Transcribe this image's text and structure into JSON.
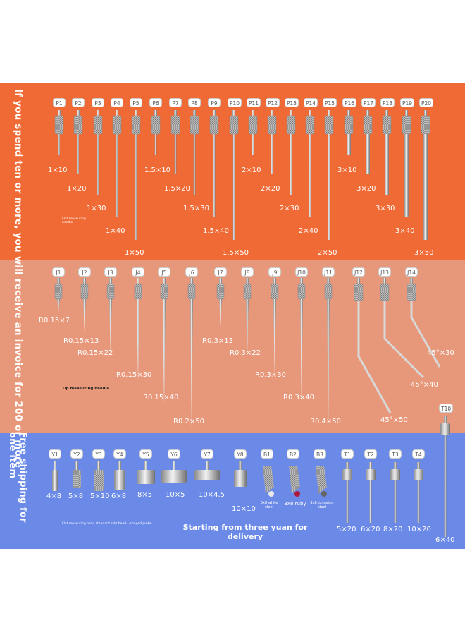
{
  "side_text_1": "If you spend ten or more, you will receive an invoice for 200 or more",
  "side_text_2": "Free shipping for one item",
  "note_flat": "Flat measuring needle",
  "note_tip": "Tip measuring needle",
  "note_head": "Flat measuring head standard side head L-shaped probe",
  "promo_text": "Starting from three yuan for delivery",
  "p_tags": [
    "P1",
    "P2",
    "P3",
    "P4",
    "P5",
    "P6",
    "P7",
    "P8",
    "P9",
    "P10",
    "P11",
    "P12",
    "P13",
    "P14",
    "P15",
    "P16",
    "P17",
    "P18",
    "P19",
    "P20"
  ],
  "p_labels": [
    "1×10",
    "1×20",
    "1×30",
    "1×40",
    "1×50",
    "1.5×10",
    "1.5×20",
    "1.5×30",
    "1.5×40",
    "1.5×50",
    "2×10",
    "2×20",
    "2×30",
    "2×40",
    "2×50",
    "3×10",
    "3×20",
    "3×30",
    "3×40",
    "3×50"
  ],
  "j_tags": [
    "J1",
    "J2",
    "J3",
    "J4",
    "J5",
    "J6",
    "J7",
    "J8",
    "J9",
    "J10",
    "J11",
    "J12",
    "J13",
    "J14"
  ],
  "j_labels": [
    "R0.15×7",
    "R0.15×13",
    "R0.15×22",
    "R0.15×30",
    "R0.15×40",
    "R0.2×50",
    "R0.3×13",
    "R0.3×22",
    "R0.3×30",
    "R0.3×40",
    "R0.4×50",
    "45°×50",
    "45°×40",
    "45°×30"
  ],
  "y_tags": [
    "Y1",
    "Y2",
    "Y3",
    "Y4",
    "Y5",
    "Y6",
    "Y7",
    "Y8"
  ],
  "y_labels": [
    "4×8",
    "5×8",
    "5×10",
    "6×8",
    "8×5",
    "10×5",
    "10×4.5",
    "10×10"
  ],
  "b_tags": [
    "B1",
    "B2",
    "B3"
  ],
  "b_labels": [
    "3x8 white steel",
    "3x8 ruby",
    "3x8 tungsten steel"
  ],
  "t_tags": [
    "T1",
    "T2",
    "T3",
    "T4",
    "T10"
  ],
  "t_labels": [
    "5×20",
    "6×20",
    "8×20",
    "10×20",
    "6×40"
  ],
  "colors": {
    "orange": "#ef6a35",
    "peach": "#e8987a",
    "blue": "#6b8ae8"
  }
}
